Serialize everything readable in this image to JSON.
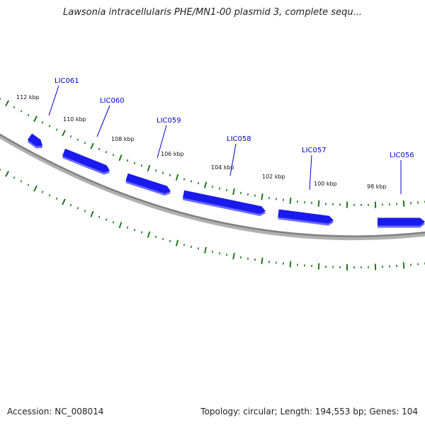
{
  "title": "Lawsonia intracellularis PHE/MN1-00 plasmid 3, complete sequ...",
  "footer": {
    "accession": "Accession: NC_008014",
    "summary": "Topology: circular; Length: 194,553 bp; Genes: 104"
  },
  "colors": {
    "gene_fill": "#1a1aee",
    "gene_shadow": "#6a6aff",
    "backbone": "#808080",
    "tick": "#1f7a1f",
    "label": "#0000cc"
  },
  "ticks": [
    {
      "label": "112 kbp"
    },
    {
      "label": "110 kbp"
    },
    {
      "label": "108 kbp"
    },
    {
      "label": "106 kbp"
    },
    {
      "label": "104 kbp"
    },
    {
      "label": "102 kbp"
    },
    {
      "label": "100 kbp"
    },
    {
      "label": "98 kbp"
    }
  ],
  "genes": [
    {
      "name": ""
    },
    {
      "name": "LIC061"
    },
    {
      "name": "LIC060"
    },
    {
      "name": "LIC059"
    },
    {
      "name": "LIC058"
    },
    {
      "name": "LIC057"
    },
    {
      "name": "LIC056"
    }
  ]
}
